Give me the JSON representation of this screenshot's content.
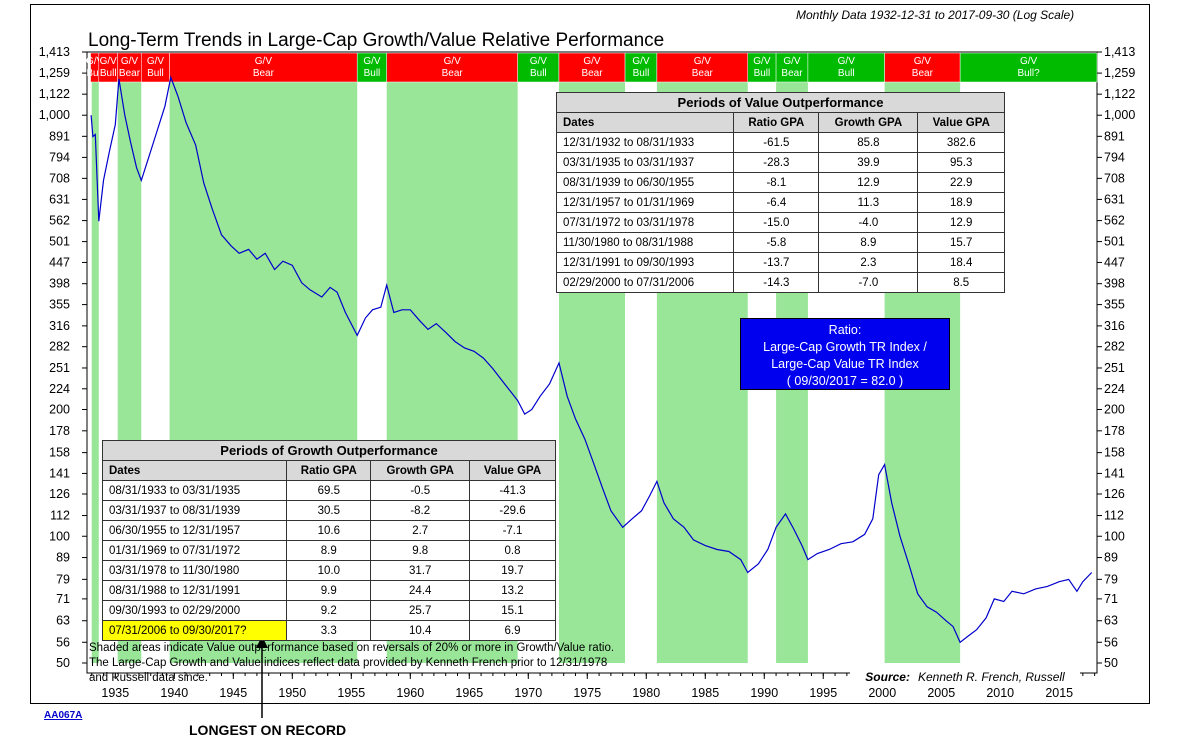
{
  "header": {
    "subtitle": "Monthly Data 1932-12-31 to 2017-09-30 (Log Scale)"
  },
  "chart_data": {
    "type": "line",
    "title": "Long-Term Trends in Large-Cap Growth/Value Relative Performance",
    "scale": "log",
    "ylim": [
      47.5,
      1413
    ],
    "xlim": [
      1932.6,
      2018.2
    ],
    "yticks": [
      "1,413",
      "1,259",
      "1,122",
      "1,000",
      "891",
      "794",
      "708",
      "631",
      "562",
      "501",
      "447",
      "398",
      "355",
      "316",
      "282",
      "251",
      "224",
      "200",
      "178",
      "158",
      "141",
      "126",
      "112",
      "100",
      "89",
      "79",
      "71",
      "63",
      "56",
      "50"
    ],
    "ytick_values": [
      1413,
      1259,
      1122,
      1000,
      891,
      794,
      708,
      631,
      562,
      501,
      447,
      398,
      355,
      316,
      282,
      251,
      224,
      200,
      178,
      158,
      141,
      126,
      112,
      100,
      89,
      79,
      71,
      63,
      56,
      50
    ],
    "xticks": [
      1935,
      1940,
      1945,
      1950,
      1955,
      1960,
      1965,
      1970,
      1975,
      1980,
      1985,
      1990,
      1995,
      2000,
      2005,
      2010,
      2015
    ],
    "xtick_labels": [
      "1935",
      "1940",
      "1945",
      "1950",
      "1955",
      "1960",
      "1965",
      "1970",
      "1975",
      "1980",
      "1985",
      "1990",
      "1995",
      "2000",
      "2005",
      "2010",
      "2015"
    ],
    "regimes": [
      {
        "start": 1932.9,
        "end": 1933.6,
        "label": "G/V",
        "sub": "Bull",
        "color": "#ff0000"
      },
      {
        "start": 1933.6,
        "end": 1935.2,
        "label": "G/V",
        "sub": "Bull",
        "color": "#ff0000"
      },
      {
        "start": 1935.2,
        "end": 1937.2,
        "label": "G/V",
        "sub": "Bear",
        "color": "#ff0000"
      },
      {
        "start": 1937.2,
        "end": 1939.6,
        "label": "G/V",
        "sub": "Bull",
        "color": "#ff0000"
      },
      {
        "start": 1939.6,
        "end": 1955.5,
        "label": "G/V",
        "sub": "Bear",
        "color": "#ff0000"
      },
      {
        "start": 1955.5,
        "end": 1958.0,
        "label": "G/V",
        "sub": "Bull",
        "color": "#00bb00"
      },
      {
        "start": 1958.0,
        "end": 1969.1,
        "label": "G/V",
        "sub": "Bear",
        "color": "#ff0000"
      },
      {
        "start": 1969.1,
        "end": 1972.6,
        "label": "G/V",
        "sub": "Bull",
        "color": "#00bb00"
      },
      {
        "start": 1972.6,
        "end": 1978.2,
        "label": "G/V",
        "sub": "Bear",
        "color": "#ff0000"
      },
      {
        "start": 1978.2,
        "end": 1980.9,
        "label": "G/V",
        "sub": "Bull",
        "color": "#00bb00"
      },
      {
        "start": 1980.9,
        "end": 1988.6,
        "label": "G/V",
        "sub": "Bear",
        "color": "#ff0000"
      },
      {
        "start": 1988.6,
        "end": 1991.0,
        "label": "G/V",
        "sub": "Bull",
        "color": "#00bb00"
      },
      {
        "start": 1991.0,
        "end": 1993.7,
        "label": "G/V",
        "sub": "Bear",
        "color": "#00bb00"
      },
      {
        "start": 1993.7,
        "end": 2000.2,
        "label": "G/V",
        "sub": "Bull",
        "color": "#00bb00"
      },
      {
        "start": 2000.2,
        "end": 2006.6,
        "label": "G/V",
        "sub": "Bear",
        "color": "#ff0000"
      },
      {
        "start": 2006.6,
        "end": 2018.2,
        "label": "G/V",
        "sub": "Bull?",
        "color": "#00bb00"
      }
    ],
    "shaded_periods": [
      [
        1933.0,
        1933.6
      ],
      [
        1935.2,
        1937.2
      ],
      [
        1939.6,
        1955.5
      ],
      [
        1958.0,
        1969.1
      ],
      [
        1972.6,
        1978.2
      ],
      [
        1980.9,
        1988.6
      ],
      [
        1991.0,
        1993.7
      ],
      [
        2000.2,
        2006.6
      ]
    ],
    "series": [
      {
        "name": "Large-Cap Growth TR Index / Large-Cap Value TR Index",
        "color": "#0000cc",
        "points": [
          [
            1932.95,
            1000
          ],
          [
            1933.1,
            890
          ],
          [
            1933.3,
            900
          ],
          [
            1933.6,
            560
          ],
          [
            1934.0,
            700
          ],
          [
            1934.5,
            820
          ],
          [
            1935.0,
            950
          ],
          [
            1935.3,
            1220
          ],
          [
            1935.8,
            1000
          ],
          [
            1936.3,
            860
          ],
          [
            1936.8,
            750
          ],
          [
            1937.2,
            700
          ],
          [
            1937.8,
            790
          ],
          [
            1938.5,
            910
          ],
          [
            1939.2,
            1050
          ],
          [
            1939.7,
            1230
          ],
          [
            1940.3,
            1110
          ],
          [
            1941.0,
            960
          ],
          [
            1941.8,
            850
          ],
          [
            1942.5,
            690
          ],
          [
            1943.2,
            600
          ],
          [
            1944.0,
            520
          ],
          [
            1944.8,
            490
          ],
          [
            1945.5,
            470
          ],
          [
            1946.3,
            480
          ],
          [
            1947.0,
            455
          ],
          [
            1947.7,
            470
          ],
          [
            1948.5,
            430
          ],
          [
            1949.2,
            450
          ],
          [
            1950.0,
            440
          ],
          [
            1950.8,
            400
          ],
          [
            1951.5,
            385
          ],
          [
            1952.5,
            370
          ],
          [
            1953.2,
            390
          ],
          [
            1953.8,
            380
          ],
          [
            1954.5,
            340
          ],
          [
            1955.5,
            300
          ],
          [
            1956.2,
            330
          ],
          [
            1956.8,
            345
          ],
          [
            1957.5,
            350
          ],
          [
            1958.0,
            395
          ],
          [
            1958.6,
            340
          ],
          [
            1959.3,
            345
          ],
          [
            1960.0,
            345
          ],
          [
            1960.8,
            325
          ],
          [
            1961.5,
            310
          ],
          [
            1962.2,
            320
          ],
          [
            1963.0,
            305
          ],
          [
            1963.8,
            290
          ],
          [
            1964.6,
            280
          ],
          [
            1965.4,
            275
          ],
          [
            1966.2,
            265
          ],
          [
            1967.0,
            250
          ],
          [
            1968.0,
            230
          ],
          [
            1969.1,
            210
          ],
          [
            1969.7,
            195
          ],
          [
            1970.3,
            200
          ],
          [
            1971.0,
            215
          ],
          [
            1971.8,
            230
          ],
          [
            1972.6,
            258
          ],
          [
            1973.3,
            215
          ],
          [
            1974.0,
            190
          ],
          [
            1974.8,
            170
          ],
          [
            1975.5,
            150
          ],
          [
            1976.3,
            130
          ],
          [
            1977.0,
            115
          ],
          [
            1978.0,
            105
          ],
          [
            1978.8,
            110
          ],
          [
            1979.6,
            115
          ],
          [
            1980.3,
            125
          ],
          [
            1980.9,
            135
          ],
          [
            1981.5,
            120
          ],
          [
            1982.3,
            110
          ],
          [
            1983.2,
            105
          ],
          [
            1984.0,
            98
          ],
          [
            1985.0,
            95
          ],
          [
            1986.0,
            93
          ],
          [
            1987.0,
            92
          ],
          [
            1988.0,
            88
          ],
          [
            1988.6,
            82
          ],
          [
            1989.5,
            86
          ],
          [
            1990.3,
            93
          ],
          [
            1991.0,
            105
          ],
          [
            1991.8,
            113
          ],
          [
            1992.5,
            104
          ],
          [
            1993.2,
            95
          ],
          [
            1993.7,
            88
          ],
          [
            1994.5,
            91
          ],
          [
            1995.5,
            93
          ],
          [
            1996.5,
            96
          ],
          [
            1997.5,
            97
          ],
          [
            1998.5,
            101
          ],
          [
            1999.2,
            110
          ],
          [
            1999.7,
            140
          ],
          [
            2000.2,
            148
          ],
          [
            2000.8,
            120
          ],
          [
            2001.5,
            100
          ],
          [
            2002.3,
            85
          ],
          [
            2003.0,
            73
          ],
          [
            2003.8,
            68
          ],
          [
            2004.6,
            66
          ],
          [
            2005.4,
            63
          ],
          [
            2006.0,
            61
          ],
          [
            2006.6,
            56
          ],
          [
            2007.3,
            58
          ],
          [
            2008.0,
            60
          ],
          [
            2008.8,
            64
          ],
          [
            2009.5,
            71
          ],
          [
            2010.3,
            70
          ],
          [
            2011.0,
            74
          ],
          [
            2012.0,
            73
          ],
          [
            2013.0,
            75
          ],
          [
            2014.0,
            76
          ],
          [
            2015.0,
            78
          ],
          [
            2015.8,
            79
          ],
          [
            2016.5,
            74
          ],
          [
            2017.0,
            78
          ],
          [
            2017.75,
            82
          ]
        ]
      }
    ]
  },
  "value_table": {
    "title": "Periods of Value Outperformance",
    "columns": [
      "Dates",
      "Ratio GPA",
      "Growth GPA",
      "Value GPA"
    ],
    "rows": [
      [
        "12/31/1932 to 08/31/1933",
        "-61.5",
        "85.8",
        "382.6"
      ],
      [
        "03/31/1935 to 03/31/1937",
        "-28.3",
        "39.9",
        "95.3"
      ],
      [
        "08/31/1939 to 06/30/1955",
        "-8.1",
        "12.9",
        "22.9"
      ],
      [
        "12/31/1957 to 01/31/1969",
        "-6.4",
        "11.3",
        "18.9"
      ],
      [
        "07/31/1972 to 03/31/1978",
        "-15.0",
        "-4.0",
        "12.9"
      ],
      [
        "11/30/1980 to 08/31/1988",
        "-5.8",
        "8.9",
        "15.7"
      ],
      [
        "12/31/1991 to 09/30/1993",
        "-13.7",
        "2.3",
        "18.4"
      ],
      [
        "02/29/2000 to 07/31/2006",
        "-14.3",
        "-7.0",
        "8.5"
      ]
    ]
  },
  "growth_table": {
    "title": "Periods of Growth Outperformance",
    "columns": [
      "Dates",
      "Ratio GPA",
      "Growth GPA",
      "Value GPA"
    ],
    "rows": [
      [
        "08/31/1933 to 03/31/1935",
        "69.5",
        "-0.5",
        "-41.3"
      ],
      [
        "03/31/1937 to 08/31/1939",
        "30.5",
        "-8.2",
        "-29.6"
      ],
      [
        "06/30/1955 to 12/31/1957",
        "10.6",
        "2.7",
        "-7.1"
      ],
      [
        "01/31/1969 to 07/31/1972",
        "8.9",
        "9.8",
        "0.8"
      ],
      [
        "03/31/1978 to 11/30/1980",
        "10.0",
        "31.7",
        "19.7"
      ],
      [
        "08/31/1988 to 12/31/1991",
        "9.9",
        "24.4",
        "13.2"
      ],
      [
        "09/30/1993 to 02/29/2000",
        "9.2",
        "25.7",
        "15.1"
      ],
      [
        "07/31/2006 to 09/30/2017?",
        "3.3",
        "10.4",
        "6.9"
      ]
    ]
  },
  "ratio_box": {
    "line1": "Ratio:",
    "line2": "Large-Cap Growth TR Index /",
    "line3": "Large-Cap Value TR Index",
    "line4": "( 09/30/2017 = 82.0 )"
  },
  "notes": {
    "line1": "Shaded areas indicate Value outperformance based on reversals of 20% or more in Growth/Value ratio.",
    "line2": "The Large-Cap Growth and Value indices reflect data provided by Kenneth French prior to 12/31/1978",
    "line3": "and Russell data since."
  },
  "source": {
    "label": "Source:",
    "text": "Kenneth R. French, Russell"
  },
  "footer": {
    "code": "AA067A",
    "callout": "LONGEST ON RECORD"
  },
  "colors": {
    "shade": "#99e699",
    "line": "#0000cc",
    "bear": "#ff0000",
    "bull": "#00bb00"
  }
}
